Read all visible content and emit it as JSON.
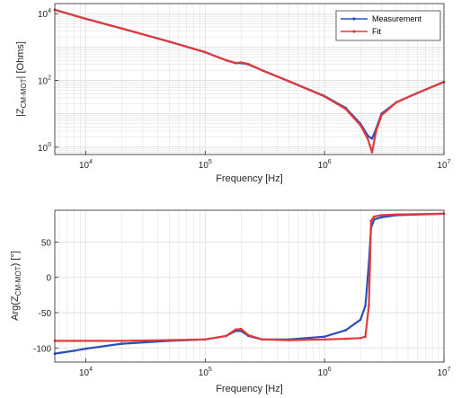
{
  "colors": {
    "measurement": "#2a4fb8",
    "fit": "#e23a3a",
    "grid": "#d9d9d9",
    "axis": "#262626"
  },
  "chart_data": [
    {
      "type": "line",
      "xlabel": "Frequency [Hz]",
      "ylabel": "|Z",
      "ylabel_sub": "CM-MOT",
      "ylabel_post": "| [Ohms]",
      "xscale": "log",
      "yscale": "log",
      "xlim": [
        5500,
        10000000
      ],
      "ylim": [
        0.6,
        20000
      ],
      "xticks": [
        {
          "value": 10000,
          "base": "10",
          "exp": "4"
        },
        {
          "value": 100000,
          "base": "10",
          "exp": "5"
        },
        {
          "value": 1000000,
          "base": "10",
          "exp": "6"
        },
        {
          "value": 10000000,
          "base": "10",
          "exp": "7"
        }
      ],
      "yticks": [
        {
          "value": 1,
          "base": "10",
          "exp": "0"
        },
        {
          "value": 100,
          "base": "10",
          "exp": "2"
        },
        {
          "value": 10000,
          "base": "10",
          "exp": "4"
        }
      ],
      "grid": true,
      "legend": {
        "position": "top-right",
        "entries": [
          "Measurement",
          "Fit"
        ]
      },
      "series": [
        {
          "name": "Measurement",
          "x": [
            5500,
            10000,
            20000,
            50000,
            100000,
            150000,
            180000,
            200000,
            230000,
            300000,
            500000,
            1000000,
            1500000,
            2000000,
            2300000,
            2500000,
            2700000,
            3000000,
            4000000,
            6000000,
            10000000
          ],
          "y": [
            13000,
            7000,
            3600,
            1450,
            700,
            400,
            330,
            330,
            300,
            200,
            95,
            34,
            15,
            5,
            2.2,
            1.8,
            3.5,
            10,
            22,
            42,
            90
          ]
        },
        {
          "name": "Fit",
          "x": [
            5500,
            10000,
            20000,
            50000,
            100000,
            150000,
            180000,
            200000,
            230000,
            300000,
            500000,
            1000000,
            1500000,
            2000000,
            2300000,
            2500000,
            2700000,
            3000000,
            4000000,
            6000000,
            10000000
          ],
          "y": [
            13000,
            7000,
            3600,
            1450,
            700,
            400,
            330,
            345,
            310,
            200,
            95,
            33,
            14,
            4.5,
            1.8,
            0.7,
            3,
            9,
            22,
            42,
            90
          ]
        }
      ]
    },
    {
      "type": "line",
      "xlabel": "Frequency [Hz]",
      "ylabel": "Arg(Z",
      "ylabel_sub": "CM-MOT",
      "ylabel_post": ") [°]",
      "xscale": "log",
      "xlim": [
        5500,
        10000000
      ],
      "ylim": [
        -120,
        95
      ],
      "xticks": [
        {
          "value": 10000,
          "base": "10",
          "exp": "4"
        },
        {
          "value": 100000,
          "base": "10",
          "exp": "5"
        },
        {
          "value": 1000000,
          "base": "10",
          "exp": "6"
        },
        {
          "value": 10000000,
          "base": "10",
          "exp": "7"
        }
      ],
      "yticks": [
        {
          "value": -100,
          "label": "-100"
        },
        {
          "value": -50,
          "label": "-50"
        },
        {
          "value": 0,
          "label": "0"
        },
        {
          "value": 50,
          "label": "50"
        }
      ],
      "grid": true,
      "series": [
        {
          "name": "Measurement",
          "x": [
            5500,
            8000,
            10000,
            20000,
            50000,
            100000,
            150000,
            180000,
            200000,
            230000,
            300000,
            500000,
            1000000,
            1500000,
            2000000,
            2200000,
            2350000,
            2450000,
            2600000,
            3000000,
            4000000,
            10000000
          ],
          "y": [
            -108,
            -104,
            -101,
            -94,
            -90,
            -88,
            -83,
            -76,
            -76,
            -83,
            -88,
            -88,
            -84,
            -75,
            -60,
            -40,
            20,
            70,
            82,
            85,
            88,
            90
          ]
        },
        {
          "name": "Fit",
          "x": [
            5500,
            8000,
            10000,
            20000,
            50000,
            100000,
            150000,
            180000,
            200000,
            230000,
            300000,
            500000,
            1000000,
            1500000,
            2000000,
            2200000,
            2350000,
            2450000,
            2600000,
            3000000,
            4000000,
            10000000
          ],
          "y": [
            -90,
            -90,
            -90,
            -90,
            -89,
            -88,
            -83,
            -74,
            -73,
            -82,
            -88,
            -89,
            -88,
            -87,
            -86,
            -84,
            -40,
            80,
            86,
            88,
            89,
            90
          ]
        }
      ]
    }
  ]
}
